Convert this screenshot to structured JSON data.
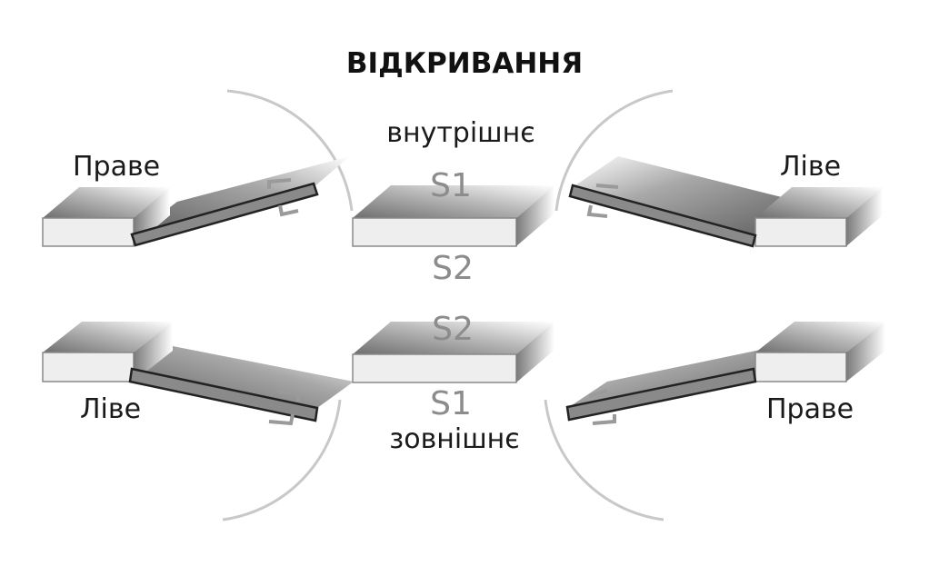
{
  "title": "ВІДКРИВАННЯ",
  "inward": {
    "label": "внутрішнє",
    "left_label": "Праве",
    "right_label": "Ліве",
    "top_side": "S1",
    "bottom_side": "S2"
  },
  "outward": {
    "label": "зовнішнє",
    "left_label": "Ліве",
    "right_label": "Праве",
    "top_side": "S2",
    "bottom_side": "S1"
  },
  "colors": {
    "frame_face": "#eeeeee",
    "frame_shadow": "#7a7a7a",
    "door_leaf": "#8a8a8a",
    "swing_arc": "#c8c8c8",
    "hinge": "#9a9a9a"
  }
}
